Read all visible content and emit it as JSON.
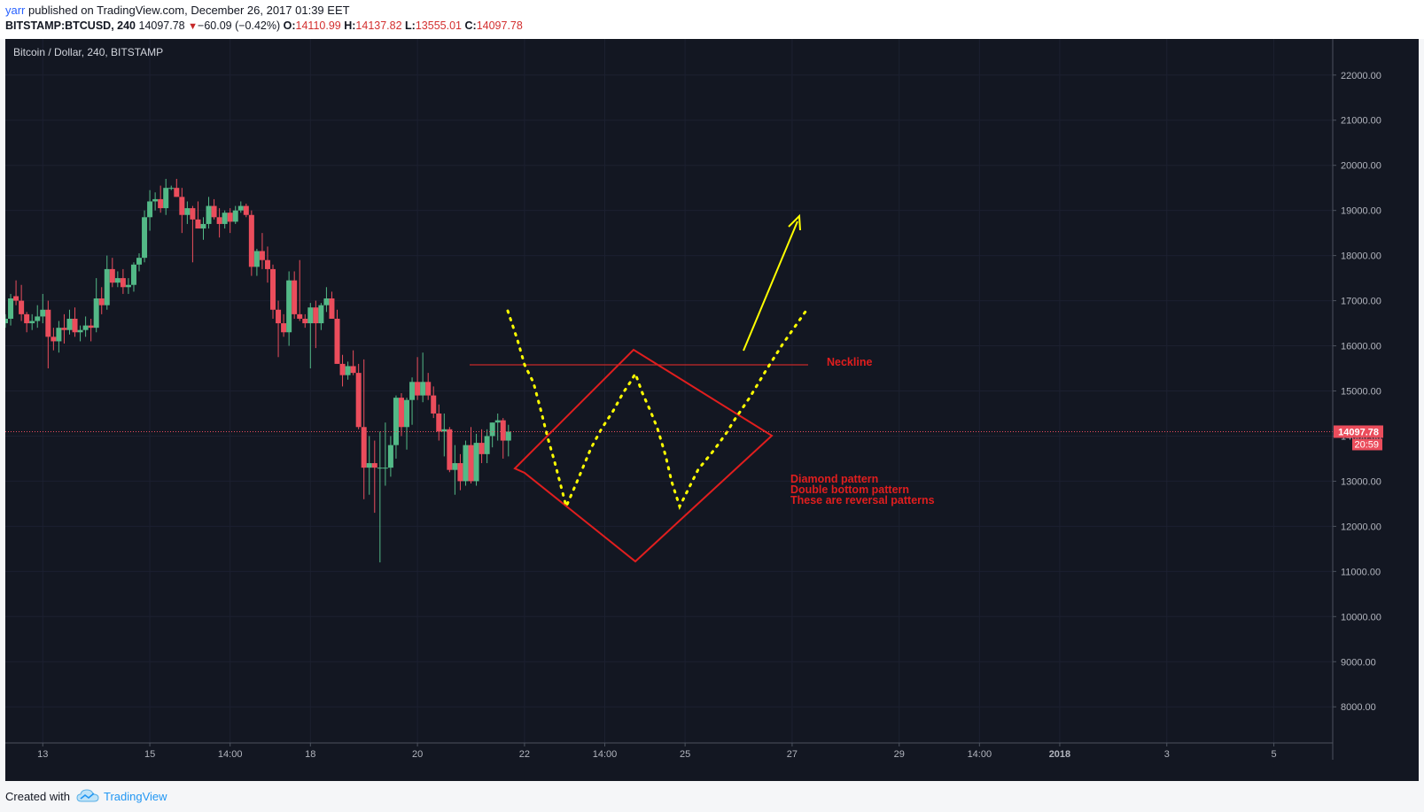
{
  "header": {
    "publisher": "yarr",
    "published_text": "published on TradingView.com, December 26, 2017 01:39 EET",
    "symbol": "BITSTAMP:BTCUSD, 240",
    "last": "14097.78",
    "change": "−60.09 (−0.42%)",
    "open_label": "O:",
    "open": "14110.99",
    "high_label": "H:",
    "high": "14137.82",
    "low_label": "L:",
    "low": "13555.01",
    "close_label": "C:",
    "close": "14097.78"
  },
  "footer": {
    "created_with": "Created with",
    "brand": "TradingView"
  },
  "chart_data": {
    "type": "candlestick",
    "title": "Bitcoin / Dollar, 240, BITSTAMP",
    "ylim": [
      7200,
      22800
    ],
    "y_ticks": [
      8000,
      9000,
      10000,
      11000,
      12000,
      13000,
      14000,
      15000,
      16000,
      17000,
      18000,
      19000,
      20000,
      21000,
      22000
    ],
    "y_tick_labels": [
      "8000.00",
      "9000.00",
      "10000.00",
      "11000.00",
      "12000.00",
      "13000.00",
      "14000.00",
      "15000.00",
      "16000.00",
      "17000.00",
      "18000.00",
      "19000.00",
      "20000.00",
      "21000.00",
      "22000.00"
    ],
    "x_range": [
      0,
      248
    ],
    "x_ticks": [
      {
        "x": 7,
        "label": "13",
        "bold": false
      },
      {
        "x": 27,
        "label": "15",
        "bold": false
      },
      {
        "x": 42,
        "label": "14:00",
        "bold": false
      },
      {
        "x": 57,
        "label": "18",
        "bold": false
      },
      {
        "x": 77,
        "label": "20",
        "bold": false
      },
      {
        "x": 97,
        "label": "22",
        "bold": false
      },
      {
        "x": 112,
        "label": "14:00",
        "bold": false
      },
      {
        "x": 127,
        "label": "25",
        "bold": false
      },
      {
        "x": 147,
        "label": "27",
        "bold": false
      },
      {
        "x": 167,
        "label": "29",
        "bold": false
      },
      {
        "x": 182,
        "label": "14:00",
        "bold": false
      },
      {
        "x": 197,
        "label": "2018",
        "bold": true
      },
      {
        "x": 217,
        "label": "3",
        "bold": false
      },
      {
        "x": 237,
        "label": "5",
        "bold": false
      }
    ],
    "ohlc": [
      [
        16500,
        16700,
        16400,
        16600
      ],
      [
        16600,
        17150,
        16450,
        17050
      ],
      [
        17100,
        17450,
        16900,
        17000
      ],
      [
        17000,
        17350,
        16550,
        16700
      ],
      [
        16700,
        16750,
        16300,
        16500
      ],
      [
        16500,
        16700,
        16350,
        16550
      ],
      [
        16550,
        16900,
        16400,
        16650
      ],
      [
        16650,
        17150,
        16500,
        16800
      ],
      [
        16800,
        17000,
        15500,
        16200
      ],
      [
        16200,
        16400,
        15900,
        16100
      ],
      [
        16100,
        16550,
        15850,
        16400
      ],
      [
        16400,
        16700,
        16050,
        16350
      ],
      [
        16350,
        16800,
        16250,
        16600
      ],
      [
        16600,
        16850,
        16200,
        16300
      ],
      [
        16300,
        16450,
        16100,
        16350
      ],
      [
        16350,
        16650,
        16200,
        16450
      ],
      [
        16450,
        16600,
        16100,
        16400
      ],
      [
        16400,
        17500,
        16300,
        17050
      ],
      [
        17050,
        17300,
        16700,
        16900
      ],
      [
        16900,
        18000,
        16800,
        17700
      ],
      [
        17700,
        17950,
        17300,
        17400
      ],
      [
        17400,
        17650,
        17300,
        17500
      ],
      [
        17500,
        17700,
        17150,
        17300
      ],
      [
        17300,
        17500,
        17150,
        17350
      ],
      [
        17350,
        17850,
        17200,
        17800
      ],
      [
        17800,
        18050,
        17650,
        17950
      ],
      [
        17950,
        19000,
        17850,
        18850
      ],
      [
        18850,
        19450,
        18550,
        19200
      ],
      [
        19200,
        19400,
        19000,
        19250
      ],
      [
        19250,
        19550,
        18950,
        19050
      ],
      [
        19050,
        19700,
        18900,
        19500
      ],
      [
        19500,
        19550,
        19450,
        19500
      ],
      [
        19500,
        19700,
        19300,
        19300
      ],
      [
        19300,
        19500,
        18500,
        18900
      ],
      [
        18900,
        19200,
        18700,
        19050
      ],
      [
        19050,
        19100,
        17850,
        18800
      ],
      [
        18800,
        19200,
        18600,
        18600
      ],
      [
        18600,
        18850,
        18350,
        18700
      ],
      [
        18700,
        19300,
        18600,
        19100
      ],
      [
        19100,
        19250,
        18800,
        18850
      ],
      [
        18850,
        19050,
        18400,
        18700
      ],
      [
        18700,
        19000,
        18600,
        18950
      ],
      [
        18950,
        19050,
        18500,
        18750
      ],
      [
        18750,
        19100,
        18700,
        19000
      ],
      [
        19000,
        19200,
        18950,
        19100
      ],
      [
        19100,
        19150,
        18850,
        18900
      ],
      [
        18900,
        19000,
        17550,
        17750
      ],
      [
        17750,
        18150,
        17550,
        18100
      ],
      [
        18100,
        18500,
        17700,
        17900
      ],
      [
        17900,
        18200,
        17400,
        17700
      ],
      [
        17700,
        17800,
        16600,
        16800
      ],
      [
        16800,
        17000,
        15750,
        16500
      ],
      [
        16500,
        16700,
        16200,
        16300
      ],
      [
        16300,
        17650,
        16000,
        17450
      ],
      [
        17450,
        17650,
        16600,
        16700
      ],
      [
        16700,
        17900,
        16550,
        16600
      ],
      [
        16600,
        16700,
        16400,
        16500
      ],
      [
        16500,
        16950,
        15500,
        16850
      ],
      [
        16850,
        17000,
        15950,
        16500
      ],
      [
        16500,
        16950,
        16350,
        16900
      ],
      [
        16900,
        17300,
        16750,
        17050
      ],
      [
        17050,
        17200,
        16600,
        16600
      ],
      [
        16600,
        16800,
        15600,
        15600
      ],
      [
        15600,
        15800,
        15100,
        15350
      ],
      [
        15350,
        15650,
        15250,
        15550
      ],
      [
        15550,
        15900,
        15350,
        15400
      ],
      [
        15400,
        15600,
        14150,
        14200
      ],
      [
        14200,
        15700,
        12600,
        13300
      ],
      [
        13300,
        14000,
        12700,
        13400
      ],
      [
        13400,
        13900,
        12300,
        13300
      ],
      [
        13300,
        14100,
        11200,
        13300
      ],
      [
        13300,
        14300,
        12900,
        13300
      ],
      [
        13300,
        14000,
        13100,
        13800
      ],
      [
        13800,
        14900,
        13500,
        14850
      ],
      [
        14850,
        14950,
        14000,
        14200
      ],
      [
        14200,
        14850,
        13700,
        14800
      ],
      [
        14800,
        15300,
        14250,
        15200
      ],
      [
        15200,
        15750,
        14800,
        14900
      ],
      [
        14900,
        15850,
        14750,
        15200
      ],
      [
        15200,
        15400,
        14800,
        14900
      ],
      [
        14900,
        15100,
        14400,
        14500
      ],
      [
        14500,
        14700,
        13900,
        14100
      ],
      [
        14100,
        14500,
        13550,
        14150
      ],
      [
        14150,
        14200,
        13200,
        13250
      ],
      [
        13250,
        13800,
        12700,
        13400
      ],
      [
        13400,
        13600,
        12800,
        13000
      ],
      [
        13000,
        13900,
        12900,
        13800
      ],
      [
        13800,
        14200,
        12950,
        13000
      ],
      [
        13000,
        14050,
        12900,
        13850
      ],
      [
        13850,
        14150,
        13400,
        13600
      ],
      [
        13600,
        14150,
        13400,
        14000
      ],
      [
        14000,
        14300,
        13750,
        14300
      ],
      [
        14300,
        14500,
        13900,
        14350
      ],
      [
        14350,
        14400,
        13500,
        13900
      ],
      [
        13900,
        14250,
        13550,
        14100
      ]
    ],
    "last_price": 14097.78,
    "last_price_label": "14097.78",
    "countdown_label": "20:59",
    "colors": {
      "up": "#53b987",
      "down": "#eb4d5c",
      "background": "#131722",
      "drawing_red": "#ff0000",
      "drawing_yellow": "#ffff00"
    },
    "annotations": {
      "neckline_label": "Neckline",
      "pattern_lines": [
        "Diamond pattern",
        "Double bottom pattern",
        "These are reversal patterns"
      ]
    }
  }
}
